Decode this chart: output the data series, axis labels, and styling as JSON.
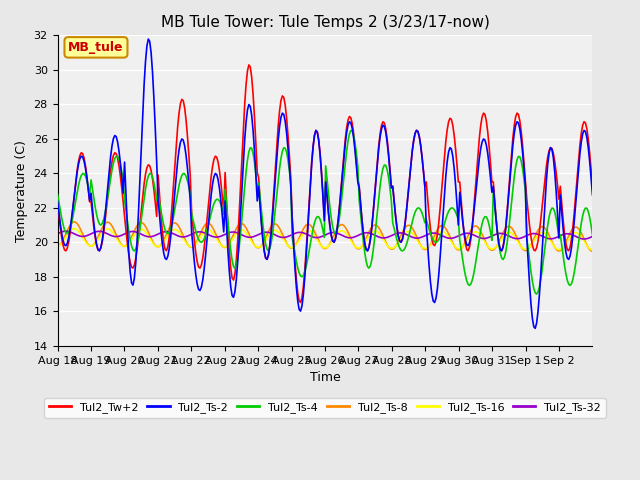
{
  "title": "MB Tule Tower: Tule Temps 2 (3/23/17-now)",
  "xlabel": "Time",
  "ylabel": "Temperature (C)",
  "ylim": [
    14,
    32
  ],
  "yticks": [
    14,
    16,
    18,
    20,
    22,
    24,
    26,
    28,
    30,
    32
  ],
  "x_labels": [
    "Aug 18",
    "Aug 19",
    "Aug 20",
    "Aug 21",
    "Aug 22",
    "Aug 23",
    "Aug 24",
    "Aug 25",
    "Aug 26",
    "Aug 27",
    "Aug 28",
    "Aug 29",
    "Aug 30",
    "Aug 31",
    "Sep 1",
    "Sep 2"
  ],
  "annotation_text": "MB_tule",
  "annotation_color": "#cc0000",
  "annotation_bg": "#ffff99",
  "annotation_border": "#cc8800",
  "line_colors": {
    "Tul2_Tw+2": "#ff0000",
    "Tul2_Ts-2": "#0000ff",
    "Tul2_Ts-4": "#00cc00",
    "Tul2_Ts-8": "#ff8800",
    "Tul2_Ts-16": "#ffff00",
    "Tul2_Ts-32": "#9900cc"
  },
  "background_color": "#e8e8e8",
  "plot_bg": "#f0f0f0",
  "grid_color": "#ffffff"
}
